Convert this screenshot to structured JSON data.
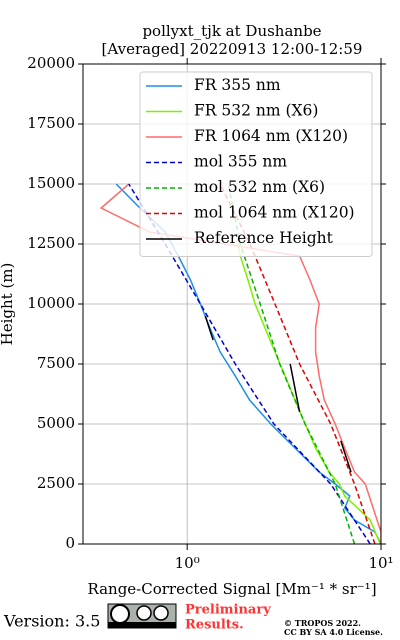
{
  "chart_data": {
    "type": "line",
    "title": "pollyxt_tjk at Dushanbe",
    "subtitle": "[Averaged] 20220913 12:00-12:59",
    "x_label": "Range-Corrected Signal [Mm⁻¹ * sr⁻¹]",
    "y_label": "Height (m)",
    "xlim": [
      0.29,
      10
    ],
    "x_log": true,
    "xticks": [
      {
        "value": 1,
        "label": "10⁰"
      },
      {
        "value": 10,
        "label": "10¹"
      }
    ],
    "ylim": [
      0,
      20000
    ],
    "yticks": [
      0,
      2500,
      5000,
      7500,
      10000,
      12500,
      15000,
      17500,
      20000
    ],
    "grid": true,
    "legend": "upper right",
    "series": [
      {
        "name": "FR 355 nm",
        "color": "#1e8fe6",
        "linestyle": "solid",
        "y": [
          0,
          500,
          1000,
          1500,
          2000,
          2500,
          3000,
          4000,
          5000,
          6000,
          7000,
          8000,
          9000,
          10000,
          11000,
          12000,
          13000,
          14000,
          15000
        ],
        "values": [
          10,
          9.3,
          7.3,
          6.5,
          6.9,
          5.8,
          4.8,
          3.6,
          2.7,
          2.1,
          1.77,
          1.48,
          1.31,
          1.17,
          1.04,
          0.9,
          0.77,
          0.57,
          0.43
        ]
      },
      {
        "name": "FR 532 nm (X6)",
        "color": "#7cf000",
        "linestyle": "solid",
        "y": [
          0,
          1000,
          2000,
          2500,
          3000,
          4000,
          5000,
          6000,
          7000,
          8000,
          9000,
          10000,
          11000,
          12000,
          12500
        ],
        "values": [
          9.9,
          8.8,
          6.5,
          6.1,
          5.4,
          4.6,
          4.06,
          3.6,
          3.2,
          2.84,
          2.52,
          2.24,
          2.06,
          1.88,
          1.83
        ]
      },
      {
        "name": "FR 1064 nm (X120)",
        "color": "#ff6a6a",
        "linestyle": "solid",
        "y": [
          0,
          500,
          2500,
          3000,
          4000,
          5000,
          6000,
          7000,
          8000,
          9000,
          10000,
          11000,
          12000,
          13000,
          14000,
          15000
        ],
        "values": [
          10,
          10,
          8.3,
          7.3,
          6.5,
          5.8,
          5.1,
          4.8,
          4.6,
          4.6,
          4.8,
          4.3,
          3.8,
          0.64,
          0.36,
          0.5
        ]
      },
      {
        "name": "mol 355 nm",
        "color": "#0000cd",
        "linestyle": "dashed",
        "y": [
          0,
          2500,
          5000,
          7500,
          10000,
          12500,
          15000
        ],
        "values": [
          8.8,
          5.5,
          2.8,
          1.77,
          1.17,
          0.77,
          0.5
        ]
      },
      {
        "name": "mol 532 nm (X6)",
        "color": "#00b400",
        "linestyle": "dashed",
        "y": [
          0,
          2500,
          5000,
          7500,
          10000,
          12500,
          15000
        ],
        "values": [
          7.3,
          5.8,
          4.06,
          3.0,
          2.38,
          1.88,
          1.63
        ]
      },
      {
        "name": "mol 1064 nm (X120)",
        "color": "#e00000",
        "linestyle": "dashed",
        "y": [
          0,
          2500,
          5000,
          7500,
          10000,
          12500,
          15000
        ],
        "values": [
          9.3,
          7.3,
          5.5,
          3.8,
          2.84,
          2.11,
          1.48
        ]
      },
      {
        "name": "Reference Height",
        "color": "#000000",
        "linestyle": "solid",
        "y": [
          8500,
          9500,
          9500,
          5500,
          7500,
          7500,
          3000,
          4300
        ],
        "values": [
          1.36,
          1.24,
          null,
          3.8,
          3.4,
          null,
          7.0,
          6.2
        ]
      }
    ]
  },
  "footer": {
    "version": "Version: 3.5",
    "notice": [
      "Preliminary",
      "Results."
    ],
    "license": [
      "© TROPOS 2022.",
      "CC BY SA 4.0 License."
    ]
  }
}
